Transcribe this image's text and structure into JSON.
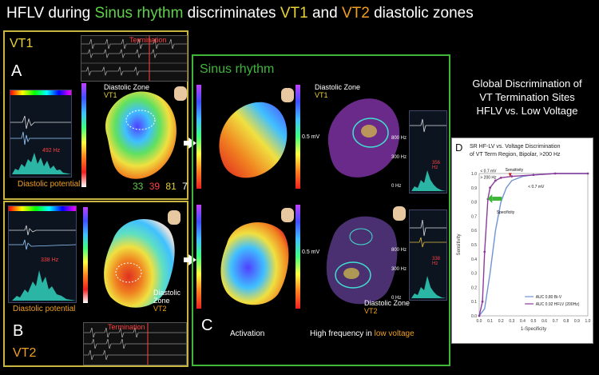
{
  "title": {
    "part1": "HFLV during ",
    "sinus": "Sinus rhythm",
    "part2": " discriminates ",
    "vt1": "VT1",
    "part3": " and ",
    "vt2": "VT2",
    "part4": " diastolic zones"
  },
  "panel_vt1": {
    "vt_label": "VT1",
    "letter": "A",
    "termination": "Termination",
    "diastolic_zone": "Diastolic Zone",
    "zone_vt": "VT1",
    "freq": "492 Hz",
    "diastolic_potential": "Diastolic potential",
    "counts": [
      "33",
      "39",
      "81",
      "7"
    ]
  },
  "panel_vt2": {
    "vt_label": "VT2",
    "letter": "B",
    "termination": "Termination",
    "diastolic_zone": "Diastolic Zone",
    "zone_vt": "VT2",
    "freq": "338 Hz",
    "diastolic_potential": "Diastolic potential"
  },
  "panel_sinus": {
    "heading": "Sinus rhythm",
    "letter": "C",
    "zone_vt1_text": "Diastolic Zone",
    "zone_vt1": "VT1",
    "zone_vt2_text": "Diastolic Zone",
    "zone_vt2": "VT2",
    "mv1": "0.5 mV",
    "mv2": "0.5 mV",
    "hz_top": "800 Hz",
    "hz_mid": "300 Hz",
    "hz_bot": "0 Hz",
    "hz_top2": "800 Hz",
    "hz_mid2": "300 Hz",
    "hz_bot2": "0 Hz",
    "freq1": "356 Hz",
    "freq2": "338 Hz",
    "activation": "Activation",
    "hf_prefix": "High frequency in ",
    "hf_low": "low voltage"
  },
  "global": {
    "line1": "Global Discrimination of",
    "line2": "VT Termination Sites",
    "line3": "HFLV vs. Low Voltage"
  },
  "chart_data": {
    "type": "line",
    "letter": "D",
    "title_lines": [
      "SR HF-LV vs. Voltage Discrimination",
      "of VT Term Region, Bipolar, >200 Hz"
    ],
    "xlabel": "1-Specificity",
    "ylabel": "Sensitivity",
    "xlim": [
      0,
      1.0
    ],
    "ylim": [
      0,
      1.0
    ],
    "x_ticks": [
      "0.0",
      "0.1",
      "0.2",
      "0.3",
      "0.4",
      "0.5",
      "0.6",
      "0.7",
      "0.8",
      "0.9",
      "1.0"
    ],
    "y_ticks": [
      "0.0",
      "0.1",
      "0.2",
      "0.3",
      "0.4",
      "0.5",
      "0.6",
      "0.7",
      "0.8",
      "0.9",
      "1.0"
    ],
    "annotations": {
      "lt07": "< 0.7 mV",
      "gt200": "> 200 Hz",
      "sensitivity": "Sensitivity",
      "specificity": "Specificity",
      "lt07b": "< 0.7 mV"
    },
    "series": [
      {
        "name": "AUC 0.80 Bi-V",
        "color": "#6f93d4",
        "x": [
          0.0,
          0.05,
          0.1,
          0.15,
          0.2,
          0.25,
          0.3,
          0.4,
          0.5,
          0.7,
          1.0
        ],
        "y": [
          0.0,
          0.05,
          0.3,
          0.6,
          0.8,
          0.9,
          0.95,
          0.98,
          0.99,
          1.0,
          1.0
        ]
      },
      {
        "name": "AUC 0.92 HFLV (200Hz)",
        "color": "#8a3b9c",
        "x": [
          0.0,
          0.03,
          0.05,
          0.08,
          0.1,
          0.15,
          0.2,
          0.3,
          0.5,
          0.7,
          1.0
        ],
        "y": [
          0.0,
          0.1,
          0.45,
          0.82,
          0.9,
          0.95,
          0.97,
          0.98,
          0.99,
          1.0,
          1.0
        ]
      }
    ]
  }
}
